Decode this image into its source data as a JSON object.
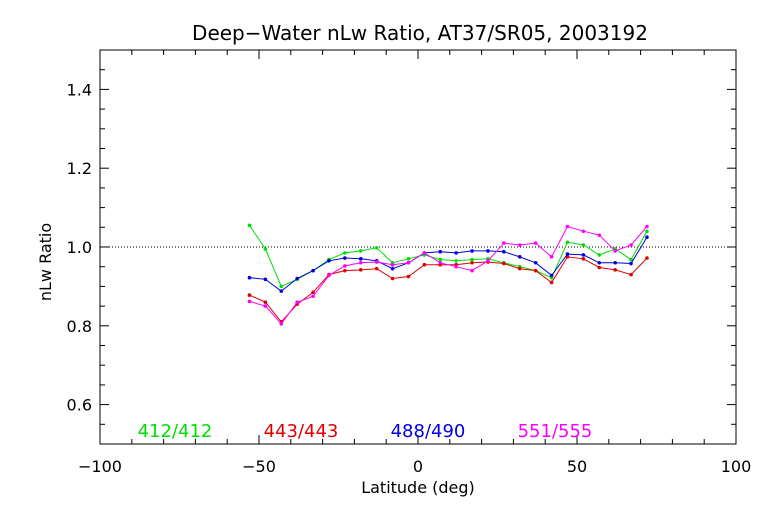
{
  "chart_data": {
    "type": "line",
    "title": "Deep−Water nLw Ratio, AT37/SR05, 2003192",
    "xlabel": "Latitude (deg)",
    "ylabel": "nLw Ratio",
    "xlim": [
      -100,
      100
    ],
    "ylim": [
      0.5,
      1.5
    ],
    "x_ticks": [
      -100,
      -50,
      0,
      50,
      100
    ],
    "x_tick_labels": [
      "−100",
      "−50",
      "0",
      "50",
      "100"
    ],
    "y_ticks": [
      0.6,
      0.8,
      1.0,
      1.2,
      1.4
    ],
    "y_tick_labels": [
      "0.6",
      "0.8",
      "1.0",
      "1.2",
      "1.4"
    ],
    "reference_line": 1.0,
    "legend_placement": "bottom-inside",
    "x": [
      -53,
      -48,
      -43,
      -38,
      -33,
      -28,
      -23,
      -18,
      -13,
      -8,
      -3,
      2,
      7,
      12,
      17,
      22,
      27,
      32,
      37,
      42,
      47,
      52,
      57,
      62,
      67,
      72
    ],
    "series": [
      {
        "name": "412/412",
        "color": "#00e000",
        "values": [
          1.055,
          0.995,
          0.9,
          0.918,
          0.94,
          0.968,
          0.985,
          0.99,
          0.998,
          0.96,
          0.97,
          0.98,
          0.968,
          0.965,
          0.968,
          0.97,
          0.96,
          0.95,
          0.94,
          0.922,
          1.012,
          1.005,
          0.98,
          0.995,
          0.968,
          1.04
        ]
      },
      {
        "name": "443/443",
        "color": "#e00000",
        "values": [
          0.878,
          0.86,
          0.81,
          0.855,
          0.885,
          0.93,
          0.94,
          0.942,
          0.945,
          0.92,
          0.925,
          0.955,
          0.955,
          0.955,
          0.96,
          0.962,
          0.958,
          0.945,
          0.94,
          0.91,
          0.975,
          0.97,
          0.948,
          0.942,
          0.93,
          0.972
        ]
      },
      {
        "name": "488/490",
        "color": "#0000e0",
        "values": [
          0.922,
          0.918,
          0.888,
          0.92,
          0.94,
          0.965,
          0.972,
          0.97,
          0.965,
          0.945,
          0.96,
          0.985,
          0.988,
          0.985,
          0.99,
          0.99,
          0.988,
          0.975,
          0.96,
          0.928,
          0.982,
          0.98,
          0.96,
          0.96,
          0.958,
          1.025
        ]
      },
      {
        "name": "551/555",
        "color": "#ff00ff",
        "values": [
          0.862,
          0.85,
          0.805,
          0.86,
          0.875,
          0.928,
          0.952,
          0.96,
          0.962,
          0.955,
          0.96,
          0.985,
          0.96,
          0.95,
          0.94,
          0.965,
          1.01,
          1.005,
          1.01,
          0.975,
          1.052,
          1.04,
          1.03,
          0.99,
          1.005,
          1.052
        ]
      }
    ]
  }
}
